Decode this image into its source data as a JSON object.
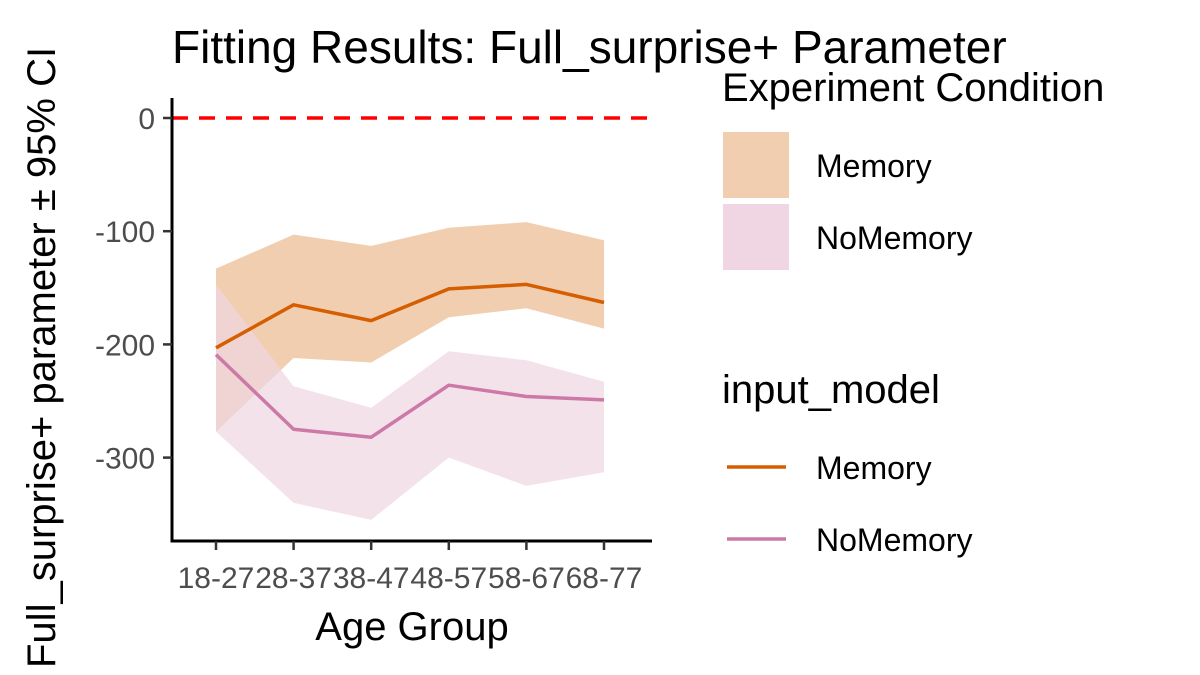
{
  "chart_data": {
    "type": "line",
    "title": "Fitting Results: Full_surprise+ Parameter",
    "xlabel": "Age Group",
    "ylabel": "Full_surprise+ parameter ± 95% CI",
    "categories": [
      "18-27",
      "28-37",
      "38-47",
      "48-57",
      "58-67",
      "68-77"
    ],
    "y_ticks": [
      0,
      -100,
      -200,
      -300
    ],
    "ylim": [
      -355,
      15
    ],
    "reference_line": {
      "y": 0,
      "color": "#ff0000",
      "style": "dashed"
    },
    "band_series": [
      {
        "name": "Memory",
        "color": "#f2ceb0",
        "lower": [
          -277,
          -212,
          -216,
          -176,
          -168,
          -186
        ],
        "upper": [
          -133,
          -103,
          -113,
          -97,
          -92,
          -108
        ]
      },
      {
        "name": "NoMemory",
        "color": "#f0d6e3",
        "lower": [
          -277,
          -340,
          -355,
          -300,
          -325,
          -313
        ],
        "upper": [
          -147,
          -237,
          -256,
          -206,
          -214,
          -233
        ]
      }
    ],
    "line_series": [
      {
        "name": "Memory",
        "color": "#d55e00",
        "values": [
          -203,
          -165,
          -179,
          -151,
          -147,
          -163
        ]
      },
      {
        "name": "NoMemory",
        "color": "#cc79a7",
        "values": [
          -209,
          -275,
          -282,
          -236,
          -246,
          -249
        ]
      }
    ],
    "legends": [
      {
        "title": "Experiment Condition",
        "kind": "fill",
        "entries": [
          {
            "label": "Memory",
            "color": "#f2ceb0"
          },
          {
            "label": "NoMemory",
            "color": "#f0d6e3"
          }
        ]
      },
      {
        "title": "input_model",
        "kind": "line",
        "entries": [
          {
            "label": "Memory",
            "color": "#d55e00"
          },
          {
            "label": "NoMemory",
            "color": "#cc79a7"
          }
        ]
      }
    ],
    "legend_position": "right",
    "grid": false
  }
}
